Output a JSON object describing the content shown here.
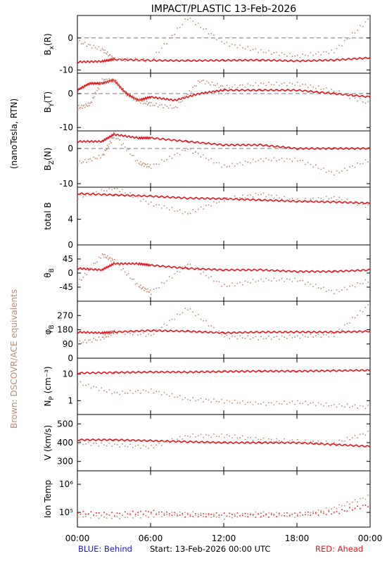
{
  "title": "IMPACT/PLASTIC   13-Feb-2026",
  "left_label": "(nanoTesla, RTN)",
  "brown_label": "Brown: DSCOVR/ACE equivalents",
  "footer": {
    "blue": "BLUE: Behind",
    "start": "Start: 13-Feb-2026 00:00 UTC",
    "red": "RED: Ahead"
  },
  "colors": {
    "ahead": "#e8141c",
    "dscovr": "#c58a6e",
    "behind": "#1a1ad6",
    "axis": "#000000",
    "dashed": "#777777"
  },
  "chart_data": [
    {
      "type": "line",
      "panel": "Bx",
      "ylabel_main": "B",
      "ylabel_sub": "x",
      "ylabel_suffix": "(R)",
      "ylim": [
        -11,
        7
      ],
      "yticks": [
        0,
        -10
      ],
      "zero_line": true,
      "scale": "linear",
      "x_hours": [
        0,
        2,
        3,
        6,
        9,
        12,
        15,
        18,
        21,
        24
      ],
      "series": [
        {
          "color": "ahead",
          "style": "line",
          "values": [
            -7.5,
            -7.3,
            -6.7,
            -7.0,
            -7.1,
            -7.0,
            -6.9,
            -7.2,
            -6.9,
            -6.2
          ]
        },
        {
          "color": "dscovr",
          "style": "dots",
          "values": [
            -1.0,
            -3.5,
            -6.5,
            -6.8,
            6.5,
            -1.5,
            -4.0,
            -5.5,
            -4.0,
            6.5
          ]
        }
      ]
    },
    {
      "type": "line",
      "panel": "By",
      "ylabel_main": "B",
      "ylabel_sub": "Y",
      "ylabel_suffix": "(T)",
      "ylim": [
        -11,
        6
      ],
      "yticks": [
        0,
        -10
      ],
      "zero_line": true,
      "scale": "linear",
      "x_hours": [
        0,
        1,
        2,
        3,
        4,
        5,
        6,
        8,
        10,
        12,
        15,
        18,
        21,
        24
      ],
      "series": [
        {
          "color": "ahead",
          "style": "line",
          "values": [
            1,
            3,
            3,
            4,
            0,
            -2,
            -1,
            -2,
            0,
            1,
            1,
            1,
            0,
            -1
          ]
        },
        {
          "color": "dscovr",
          "style": "dots",
          "values": [
            -4,
            -3,
            4,
            4,
            0,
            -2,
            -3,
            -4,
            4,
            2,
            3,
            3,
            1,
            -3
          ]
        }
      ]
    },
    {
      "type": "line",
      "panel": "Bz",
      "ylabel_main": "B",
      "ylabel_sub": "Z",
      "ylabel_suffix": "(N)",
      "ylim": [
        -11,
        5
      ],
      "yticks": [
        0,
        -10
      ],
      "zero_line": true,
      "scale": "linear",
      "x_hours": [
        0,
        2,
        3,
        5,
        6,
        9,
        12,
        15,
        18,
        21,
        24
      ],
      "series": [
        {
          "color": "ahead",
          "style": "line",
          "values": [
            2,
            2,
            4,
            3,
            3,
            2,
            1,
            1,
            0,
            0,
            0
          ]
        },
        {
          "color": "dscovr",
          "style": "dots",
          "values": [
            -4,
            -2,
            4,
            -4,
            -5,
            0,
            -5,
            -3,
            -3,
            -7,
            -3
          ]
        }
      ]
    },
    {
      "type": "line",
      "panel": "totalB",
      "ylabel_main": "total B",
      "ylabel_sub": "",
      "ylabel_suffix": "",
      "ylim": [
        0,
        9
      ],
      "yticks": [
        4,
        0
      ],
      "zero_line": false,
      "scale": "linear",
      "x_hours": [
        0,
        3,
        6,
        9,
        12,
        15,
        18,
        21,
        24
      ],
      "series": [
        {
          "color": "ahead",
          "style": "line",
          "values": [
            8.0,
            7.8,
            7.6,
            7.3,
            7.2,
            7.0,
            6.8,
            6.7,
            6.5
          ]
        },
        {
          "color": "dscovr",
          "style": "dots",
          "values": [
            7.5,
            9.0,
            6.5,
            5.0,
            7.2,
            8.0,
            7.0,
            7.5,
            6.0
          ]
        }
      ]
    },
    {
      "type": "line",
      "panel": "theta",
      "ylabel_main": "θ",
      "ylabel_sub": "B",
      "ylabel_suffix": "",
      "ylim": [
        -90,
        90
      ],
      "yticks": [
        45,
        0,
        -45
      ],
      "zero_line": false,
      "scale": "linear",
      "x_hours": [
        0,
        2,
        3,
        5,
        6,
        9,
        12,
        15,
        18,
        21,
        24
      ],
      "series": [
        {
          "color": "ahead",
          "style": "line",
          "values": [
            15,
            10,
            30,
            30,
            25,
            15,
            10,
            10,
            5,
            5,
            10
          ]
        },
        {
          "color": "dscovr",
          "style": "dots",
          "values": [
            -30,
            60,
            40,
            -40,
            -60,
            30,
            -40,
            -20,
            -20,
            -60,
            -20
          ]
        }
      ]
    },
    {
      "type": "line",
      "panel": "phi",
      "ylabel_main": "φ",
      "ylabel_sub": "B",
      "ylabel_suffix": "",
      "ylim": [
        0,
        360
      ],
      "yticks": [
        270,
        180,
        90,
        0
      ],
      "zero_line": false,
      "scale": "linear",
      "x_hours": [
        0,
        2,
        3,
        6,
        9,
        12,
        15,
        18,
        21,
        24
      ],
      "series": [
        {
          "color": "ahead",
          "style": "line",
          "values": [
            165,
            160,
            165,
            175,
            170,
            160,
            165,
            165,
            165,
            170
          ]
        },
        {
          "color": "dscovr",
          "style": "dots",
          "values": [
            100,
            130,
            170,
            150,
            320,
            140,
            130,
            140,
            150,
            350
          ]
        }
      ]
    },
    {
      "type": "line",
      "panel": "Np",
      "ylabel_main": "N",
      "ylabel_sub": "P",
      "ylabel_suffix": " (cm⁻³)",
      "ylim": [
        0.3,
        40
      ],
      "yticks": [
        10,
        1
      ],
      "zero_line": false,
      "scale": "log",
      "x_hours": [
        0,
        3,
        6,
        9,
        12,
        15,
        18,
        21,
        24
      ],
      "series": [
        {
          "color": "ahead",
          "style": "line",
          "values": [
            11,
            11.5,
            12,
            12,
            12.5,
            13,
            13,
            13.5,
            14
          ]
        },
        {
          "color": "dscovr",
          "style": "dots",
          "values": [
            5,
            2,
            2.5,
            1.2,
            1,
            0.8,
            0.9,
            0.7,
            0.6
          ]
        }
      ]
    },
    {
      "type": "line",
      "panel": "V",
      "ylabel_main": "V (km/s)",
      "ylabel_sub": "",
      "ylabel_suffix": "",
      "ylim": [
        250,
        550
      ],
      "yticks": [
        500,
        400,
        300
      ],
      "zero_line": false,
      "scale": "linear",
      "x_hours": [
        0,
        3,
        6,
        9,
        12,
        15,
        18,
        21,
        24
      ],
      "series": [
        {
          "color": "ahead",
          "style": "line",
          "values": [
            415,
            415,
            410,
            405,
            400,
            400,
            400,
            390,
            380
          ]
        },
        {
          "color": "dscovr",
          "style": "dots",
          "values": [
            400,
            390,
            380,
            440,
            440,
            420,
            410,
            400,
            460
          ]
        }
      ]
    },
    {
      "type": "line",
      "panel": "Temp",
      "ylabel_main": "Ion Temp",
      "ylabel_sub": "",
      "ylabel_suffix": "",
      "ylim": [
        30000,
        3000000
      ],
      "yticks": [
        1000000,
        100000
      ],
      "ytick_labels": [
        "10⁶",
        "10⁵"
      ],
      "zero_line": false,
      "scale": "log",
      "x_hours": [
        0,
        3,
        6,
        9,
        12,
        15,
        18,
        21,
        24
      ],
      "series": [
        {
          "color": "ahead",
          "style": "dots",
          "values": [
            100000,
            90000,
            110000,
            80000,
            90000,
            80000,
            90000,
            100000,
            200000
          ]
        },
        {
          "color": "dscovr",
          "style": "dots",
          "values": [
            80000,
            70000,
            80000,
            100000,
            70000,
            100000,
            80000,
            150000,
            400000
          ]
        }
      ]
    }
  ],
  "x_axis": {
    "ticks": [
      0,
      6,
      12,
      18,
      24
    ],
    "labels": [
      "00:00",
      "06:00",
      "12:00",
      "18:00",
      "00:00"
    ]
  }
}
